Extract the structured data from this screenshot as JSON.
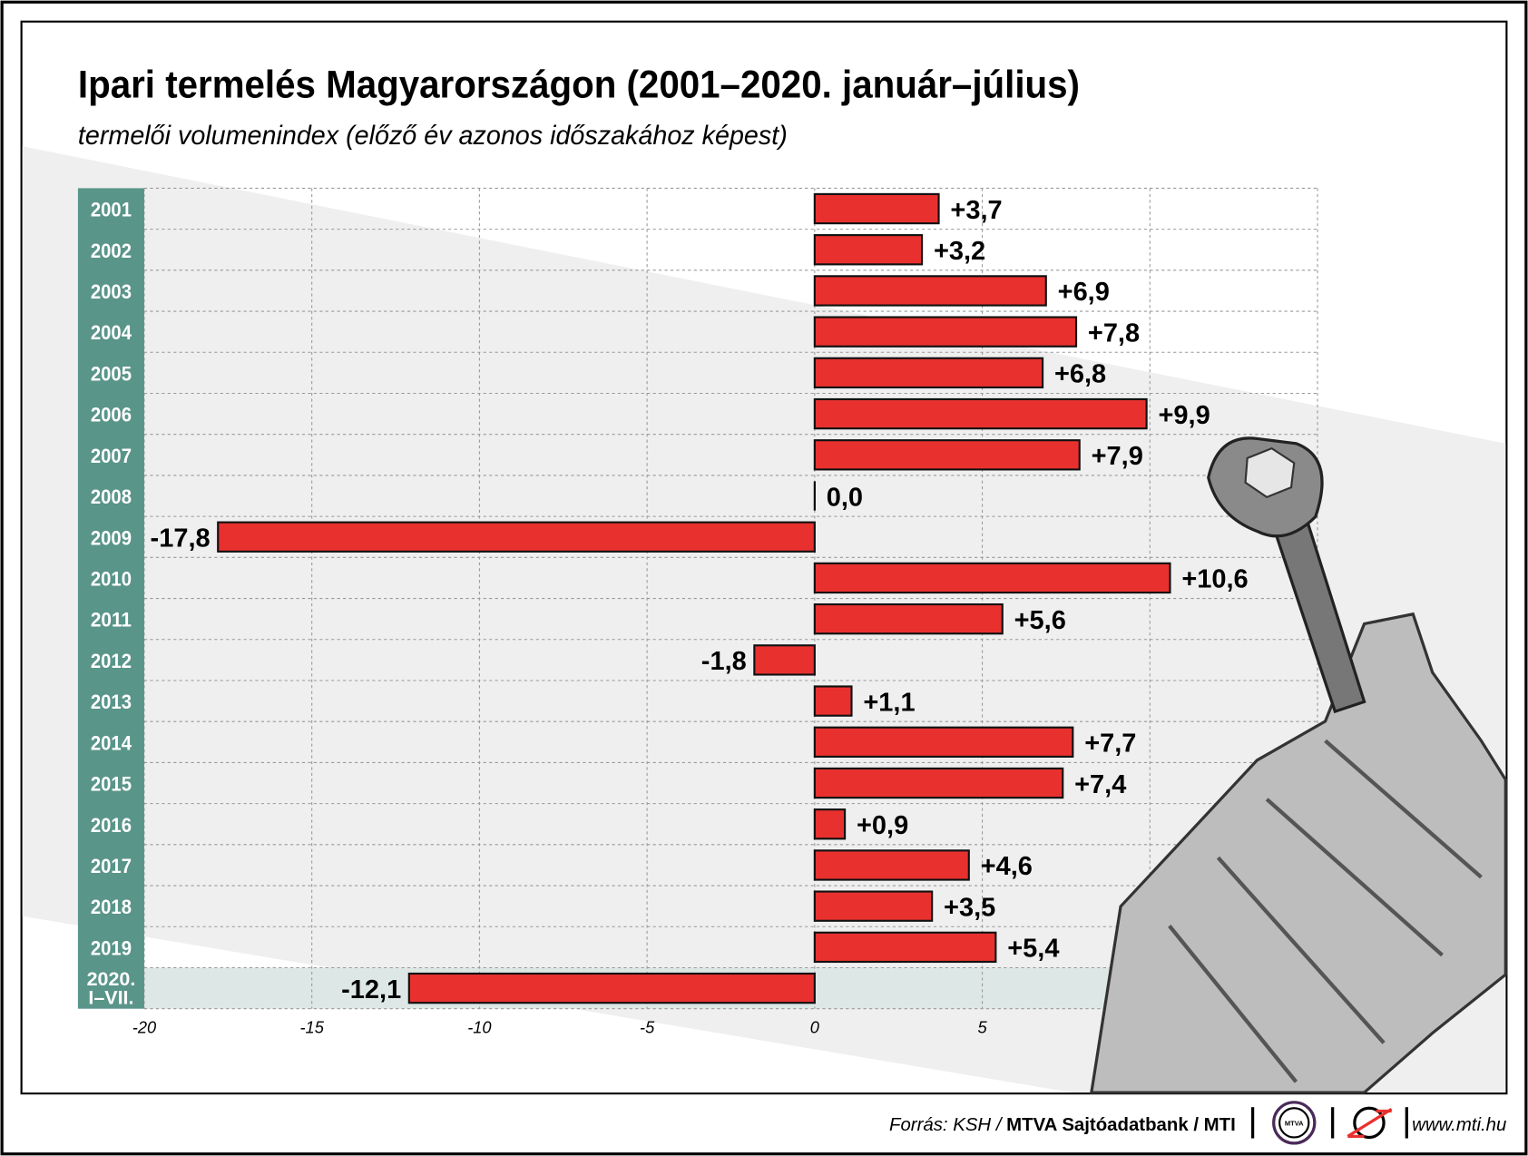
{
  "title": "Ipari termelés Magyarországon (2001–2020. január–július)",
  "subtitle": "termelői volumenindex (előző év azonos időszakához képest)",
  "footer": {
    "source_prefix": "Forrás: KSH / ",
    "source_bold": "MTVA Sajtóadatbank / MTI",
    "logo_text": "MTVA",
    "url": "www.mti.hu"
  },
  "colors": {
    "bar": "#e8312f",
    "year_column": "#5a958a",
    "background_band": "#efeff0",
    "highlight_row": "#dde7e6"
  },
  "chart_data": {
    "type": "bar",
    "orientation": "horizontal",
    "categories": [
      "2001",
      "2002",
      "2003",
      "2004",
      "2005",
      "2006",
      "2007",
      "2008",
      "2009",
      "2010",
      "2011",
      "2012",
      "2013",
      "2014",
      "2015",
      "2016",
      "2017",
      "2018",
      "2019",
      "2020. I–VII."
    ],
    "values": [
      3.7,
      3.2,
      6.9,
      7.8,
      6.8,
      9.9,
      7.9,
      0.0,
      -17.8,
      10.6,
      5.6,
      -1.8,
      1.1,
      7.7,
      7.4,
      0.9,
      4.6,
      3.5,
      5.4,
      -12.1
    ],
    "labels": [
      "+3,7",
      "+3,2",
      "+6,9",
      "+7,8",
      "+6,8",
      "+9,9",
      "+7,9",
      "0,0",
      "-17,8",
      "+10,6",
      "+5,6",
      "-1,8",
      "+1,1",
      "+7,7",
      "+7,4",
      "+0,9",
      "+4,6",
      "+3,5",
      "+5,4",
      "-12,1"
    ],
    "xticks": [
      -20,
      -15,
      -10,
      -5,
      0,
      5
    ],
    "xtick_labels": [
      "-20",
      "-15",
      "-10",
      "-5",
      "0",
      "5"
    ],
    "xlim": [
      -20,
      15
    ],
    "grid": true
  }
}
